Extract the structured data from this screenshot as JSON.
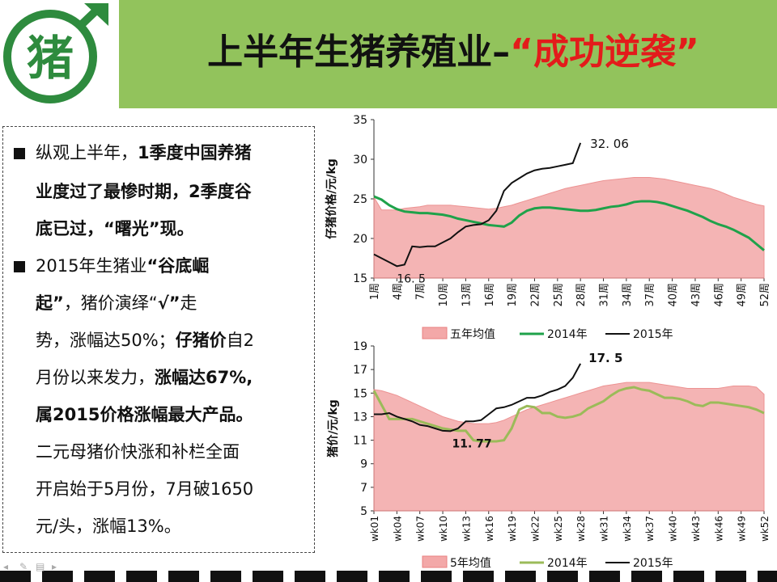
{
  "header": {
    "title_black": "上半年生猪养殖业–",
    "title_red": "“成功逆袭”",
    "logo_alt_text": "猪"
  },
  "text": {
    "line1_a": "纵观上半年，",
    "line1_b": "1季度中国养猪",
    "line2": "业度过了最惨时期，2季度谷",
    "line3": "底已过，“曙光”现。",
    "line4_a": "2015年生猪业",
    "line4_b": "“谷底崛",
    "line5_a": "起”",
    "line5_b": "，猪价演绎“",
    "line5_c": "√”",
    "line5_d": "走",
    "line6_a": "势，涨幅达50%；",
    "line6_b": "仔猪价",
    "line6_c": "自2",
    "line7_a": "月份以来发力，",
    "line7_b": "涨幅达67%,",
    "line8": "属2015价格涨幅最大产品。",
    "line9": "二元母猪价快涨和补栏全面",
    "line10": "开启始于5月份，7月破1650",
    "line11": "元/头，涨幅13%。"
  },
  "colors": {
    "header_bg": "#92c35c",
    "title_red": "#e31b1b",
    "area_fill": "#f3a8a8",
    "area_edge": "#e98080",
    "line2014_top": "#1fa24a",
    "line2014_bottom": "#9bbb59",
    "line2015": "#111111"
  },
  "chart_data": [
    {
      "type": "area+line",
      "ylabel": "仔猪价格/元/kg",
      "ylim": [
        15,
        35
      ],
      "yticks": [
        "15",
        "20",
        "25",
        "30",
        "35"
      ],
      "xtick_labels": [
        "1周",
        "4周",
        "7周",
        "10周",
        "13周",
        "16周",
        "19周",
        "22周",
        "25周",
        "28周",
        "31周",
        "34周",
        "37周",
        "40周",
        "43周",
        "46周",
        "49周",
        "52周"
      ],
      "weeks": [
        1,
        2,
        3,
        4,
        5,
        6,
        7,
        8,
        9,
        10,
        11,
        12,
        13,
        14,
        15,
        16,
        17,
        18,
        19,
        20,
        21,
        22,
        23,
        24,
        25,
        26,
        27,
        28,
        29,
        30,
        31,
        32,
        33,
        34,
        35,
        36,
        37,
        38,
        39,
        40,
        41,
        42,
        43,
        44,
        45,
        46,
        47,
        48,
        49,
        50,
        51,
        52
      ],
      "series": [
        {
          "name": "五年均值",
          "kind": "area",
          "values": [
            25.2,
            23.6,
            23.6,
            23.6,
            23.8,
            23.9,
            24.0,
            24.2,
            24.2,
            24.2,
            24.2,
            24.1,
            24.0,
            23.9,
            23.8,
            23.7,
            23.8,
            24.0,
            24.2,
            24.5,
            24.8,
            25.1,
            25.4,
            25.7,
            26.0,
            26.3,
            26.5,
            26.7,
            26.9,
            27.1,
            27.3,
            27.4,
            27.5,
            27.6,
            27.7,
            27.7,
            27.7,
            27.6,
            27.5,
            27.3,
            27.1,
            26.9,
            26.7,
            26.5,
            26.3,
            26.0,
            25.6,
            25.2,
            24.9,
            24.6,
            24.3,
            24.1
          ]
        },
        {
          "name": "2014年",
          "kind": "line",
          "values": [
            25.3,
            24.9,
            24.2,
            23.7,
            23.4,
            23.3,
            23.2,
            23.2,
            23.1,
            23.0,
            22.8,
            22.5,
            22.3,
            22.1,
            21.9,
            21.7,
            21.6,
            21.5,
            22.0,
            22.9,
            23.5,
            23.8,
            23.9,
            23.9,
            23.8,
            23.7,
            23.6,
            23.5,
            23.5,
            23.6,
            23.8,
            24.0,
            24.1,
            24.3,
            24.6,
            24.7,
            24.7,
            24.6,
            24.4,
            24.1,
            23.8,
            23.5,
            23.1,
            22.7,
            22.2,
            21.8,
            21.5,
            21.1,
            20.6,
            20.1,
            19.3,
            18.5
          ]
        },
        {
          "name": "2015年",
          "kind": "line",
          "values": [
            18.0,
            17.5,
            17.0,
            16.5,
            16.7,
            19.0,
            18.9,
            19.0,
            19.0,
            19.5,
            20.0,
            20.8,
            21.5,
            21.7,
            21.8,
            22.3,
            23.5,
            26.0,
            27.0,
            27.6,
            28.2,
            28.6,
            28.8,
            28.9,
            29.1,
            29.3,
            29.5,
            32.06
          ]
        }
      ],
      "annotations": [
        {
          "text": "32. 06",
          "week": 28,
          "value": 32.06
        },
        {
          "text": "16. 5",
          "week": 4,
          "value": 16.5
        }
      ],
      "legend": "bottom"
    },
    {
      "type": "area+line",
      "ylabel": "猪价/元/kg",
      "ylim": [
        5,
        19
      ],
      "yticks": [
        "5",
        "7",
        "9",
        "11",
        "13",
        "15",
        "17",
        "19"
      ],
      "xtick_labels": [
        "wk01",
        "wk04",
        "wk07",
        "wk10",
        "wk13",
        "wk16",
        "wk19",
        "wk22",
        "wk25",
        "wk28",
        "wk31",
        "wk34",
        "wk37",
        "wk40",
        "wk43",
        "wk46",
        "wk49",
        "wk52"
      ],
      "weeks": [
        1,
        2,
        3,
        4,
        5,
        6,
        7,
        8,
        9,
        10,
        11,
        12,
        13,
        14,
        15,
        16,
        17,
        18,
        19,
        20,
        21,
        22,
        23,
        24,
        25,
        26,
        27,
        28,
        29,
        30,
        31,
        32,
        33,
        34,
        35,
        36,
        37,
        38,
        39,
        40,
        41,
        42,
        43,
        44,
        45,
        46,
        47,
        48,
        49,
        50,
        51,
        52
      ],
      "series": [
        {
          "name": "5年均值",
          "kind": "area",
          "values": [
            15.3,
            15.2,
            15.0,
            14.8,
            14.5,
            14.2,
            13.9,
            13.6,
            13.3,
            13.0,
            12.8,
            12.6,
            12.5,
            12.4,
            12.4,
            12.4,
            12.5,
            12.7,
            13.0,
            13.3,
            13.6,
            13.8,
            14.0,
            14.2,
            14.4,
            14.6,
            14.8,
            15.0,
            15.2,
            15.4,
            15.6,
            15.7,
            15.8,
            15.9,
            15.9,
            15.9,
            15.9,
            15.8,
            15.7,
            15.6,
            15.5,
            15.4,
            15.4,
            15.4,
            15.4,
            15.4,
            15.5,
            15.6,
            15.6,
            15.6,
            15.5,
            14.9
          ]
        },
        {
          "name": "2014年",
          "kind": "line",
          "values": [
            15.2,
            14.0,
            12.8,
            12.8,
            12.8,
            12.8,
            12.6,
            12.4,
            12.2,
            12.0,
            11.9,
            11.8,
            11.8,
            11.0,
            10.9,
            10.9,
            10.9,
            11.0,
            12.0,
            13.6,
            13.9,
            13.8,
            13.3,
            13.3,
            13.0,
            12.9,
            13.0,
            13.2,
            13.7,
            14.0,
            14.3,
            14.8,
            15.2,
            15.4,
            15.5,
            15.3,
            15.2,
            14.9,
            14.6,
            14.6,
            14.5,
            14.3,
            14.0,
            13.9,
            14.2,
            14.2,
            14.1,
            14.0,
            13.9,
            13.8,
            13.6,
            13.3
          ]
        },
        {
          "name": "2015年",
          "kind": "line",
          "values": [
            13.2,
            13.2,
            13.3,
            13.0,
            12.8,
            12.6,
            12.3,
            12.2,
            12.0,
            11.8,
            11.77,
            12.0,
            12.6,
            12.6,
            12.7,
            13.2,
            13.7,
            13.8,
            14.0,
            14.3,
            14.6,
            14.6,
            14.8,
            15.1,
            15.3,
            15.6,
            16.3,
            17.5
          ]
        }
      ],
      "annotations": [
        {
          "text": "17. 5",
          "week": 28,
          "value": 17.5
        },
        {
          "text": "11. 77",
          "week": 11,
          "value": 11.77
        }
      ],
      "legend": "bottom"
    }
  ]
}
